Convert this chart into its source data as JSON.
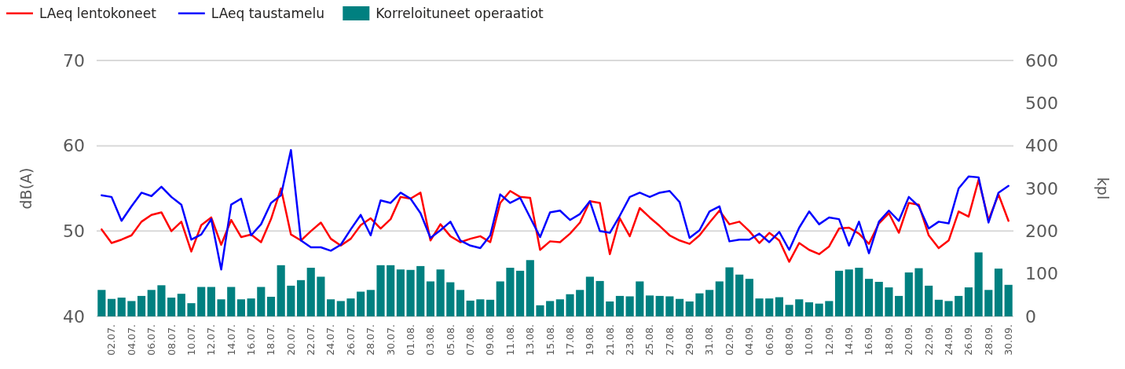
{
  "chart_data": {
    "type": "line",
    "xlabel": null,
    "ylabel": "dB(A)",
    "y2label": "kpl",
    "legend": "top left",
    "grid": "y",
    "ylim": [
      40,
      70
    ],
    "yticks": [
      40,
      50,
      60,
      70
    ],
    "y2lim": [
      0,
      600
    ],
    "y2ticks": [
      0,
      100,
      200,
      300,
      400,
      500,
      600
    ],
    "categories": [
      null,
      "02.07.",
      null,
      "04.07.",
      null,
      "06.07.",
      null,
      "08.07.",
      null,
      "10.07.",
      null,
      "12.07.",
      null,
      "14.07.",
      null,
      "16.07.",
      null,
      "18.07.",
      null,
      "20.07.",
      null,
      "22.07.",
      null,
      "24.07.",
      null,
      "26.07.",
      null,
      "28.07.",
      null,
      "30.07.",
      null,
      "01.08.",
      null,
      "03.08.",
      null,
      "05.08.",
      null,
      "07.08.",
      null,
      "09.08.",
      null,
      "11.08.",
      null,
      "13.08.",
      null,
      "15.08.",
      null,
      "17.08.",
      null,
      "19.08.",
      null,
      "21.08.",
      null,
      "23.08.",
      null,
      "25.08.",
      null,
      "27.08.",
      null,
      "29.08.",
      null,
      "31.08.",
      null,
      "02.09.",
      null,
      "04.09.",
      null,
      "06.09.",
      null,
      "08.09.",
      null,
      "10.09.",
      null,
      "12.09.",
      null,
      "14.09.",
      null,
      "16.09.",
      null,
      "18.09.",
      null,
      "20.09.",
      null,
      "22.09.",
      null,
      "24.09.",
      null,
      "26.09.",
      null,
      "28.09.",
      null,
      "30.09."
    ],
    "series": [
      {
        "name": "Korreloituneet operaatiot",
        "type": "bar",
        "axis": "y2",
        "color": "#008080",
        "values": [
          62,
          41,
          44,
          36,
          48,
          62,
          73,
          44,
          53,
          31,
          69,
          69,
          40,
          69,
          40,
          42,
          69,
          46,
          120,
          72,
          85,
          114,
          93,
          40,
          36,
          42,
          58,
          62,
          120,
          120,
          110,
          109,
          118,
          82,
          110,
          80,
          62,
          37,
          40,
          39,
          82,
          114,
          107,
          132,
          26,
          36,
          40,
          52,
          62,
          93,
          83,
          35,
          48,
          47,
          82,
          49,
          48,
          47,
          41,
          35,
          54,
          62,
          82,
          115,
          98,
          88,
          42,
          42,
          45,
          27,
          40,
          33,
          30,
          36,
          107,
          110,
          114,
          88,
          81,
          68,
          48,
          103,
          113,
          72,
          39,
          36,
          48,
          68,
          150,
          62,
          112,
          74
        ]
      },
      {
        "name": "LAeq lentokoneet",
        "color": "#ff0000",
        "values": [
          50.2,
          48.6,
          49.0,
          49.5,
          51.1,
          51.9,
          52.2,
          50.0,
          51.1,
          47.6,
          50.7,
          51.6,
          48.4,
          51.3,
          49.3,
          49.6,
          48.7,
          51.4,
          55.0,
          49.6,
          48.9,
          50.0,
          51.0,
          49.1,
          48.3,
          49.1,
          50.7,
          51.5,
          50.3,
          51.4,
          54.0,
          53.8,
          54.5,
          48.9,
          50.8,
          49.4,
          48.7,
          49.1,
          49.4,
          48.7,
          53.3,
          54.7,
          54.0,
          53.9,
          47.8,
          48.8,
          48.7,
          49.7,
          51.0,
          53.5,
          53.3,
          47.3,
          51.5,
          49.4,
          52.7,
          51.6,
          50.6,
          49.5,
          48.9,
          48.5,
          49.5,
          51.0,
          52.4,
          50.8,
          51.1,
          50.0,
          48.6,
          49.8,
          48.9,
          46.4,
          48.6,
          47.8,
          47.3,
          48.2,
          50.3,
          50.4,
          49.7,
          48.5,
          50.9,
          52.1,
          49.8,
          53.3,
          53.1,
          49.5,
          48.0,
          48.9,
          52.3,
          51.7,
          56.0,
          51.3,
          54.3,
          51.2
        ]
      },
      {
        "name": "LAeq taustamelu",
        "color": "#0000ff",
        "values": [
          54.2,
          54.0,
          51.2,
          52.9,
          54.5,
          54.1,
          55.2,
          54.0,
          53.1,
          49.0,
          49.6,
          51.4,
          45.5,
          53.1,
          53.8,
          49.5,
          50.8,
          53.3,
          54.2,
          59.5,
          48.9,
          48.1,
          48.1,
          47.7,
          48.4,
          50.2,
          51.9,
          49.5,
          53.6,
          53.3,
          54.5,
          53.8,
          52.1,
          49.2,
          50.1,
          51.1,
          48.9,
          48.3,
          48.0,
          49.5,
          54.3,
          53.3,
          53.9,
          51.6,
          49.3,
          52.2,
          52.4,
          51.3,
          52.0,
          53.5,
          50.0,
          49.8,
          51.8,
          54.0,
          54.5,
          54.0,
          54.5,
          54.7,
          53.4,
          49.2,
          50.1,
          52.3,
          52.9,
          48.8,
          49.0,
          49.0,
          49.7,
          48.7,
          49.9,
          47.8,
          50.4,
          52.3,
          50.8,
          51.6,
          51.4,
          48.3,
          51.1,
          47.4,
          51.1,
          52.4,
          51.2,
          54.0,
          52.9,
          50.3,
          51.1,
          50.9,
          55.0,
          56.4,
          56.3,
          51.0,
          54.5,
          55.3
        ]
      }
    ]
  }
}
